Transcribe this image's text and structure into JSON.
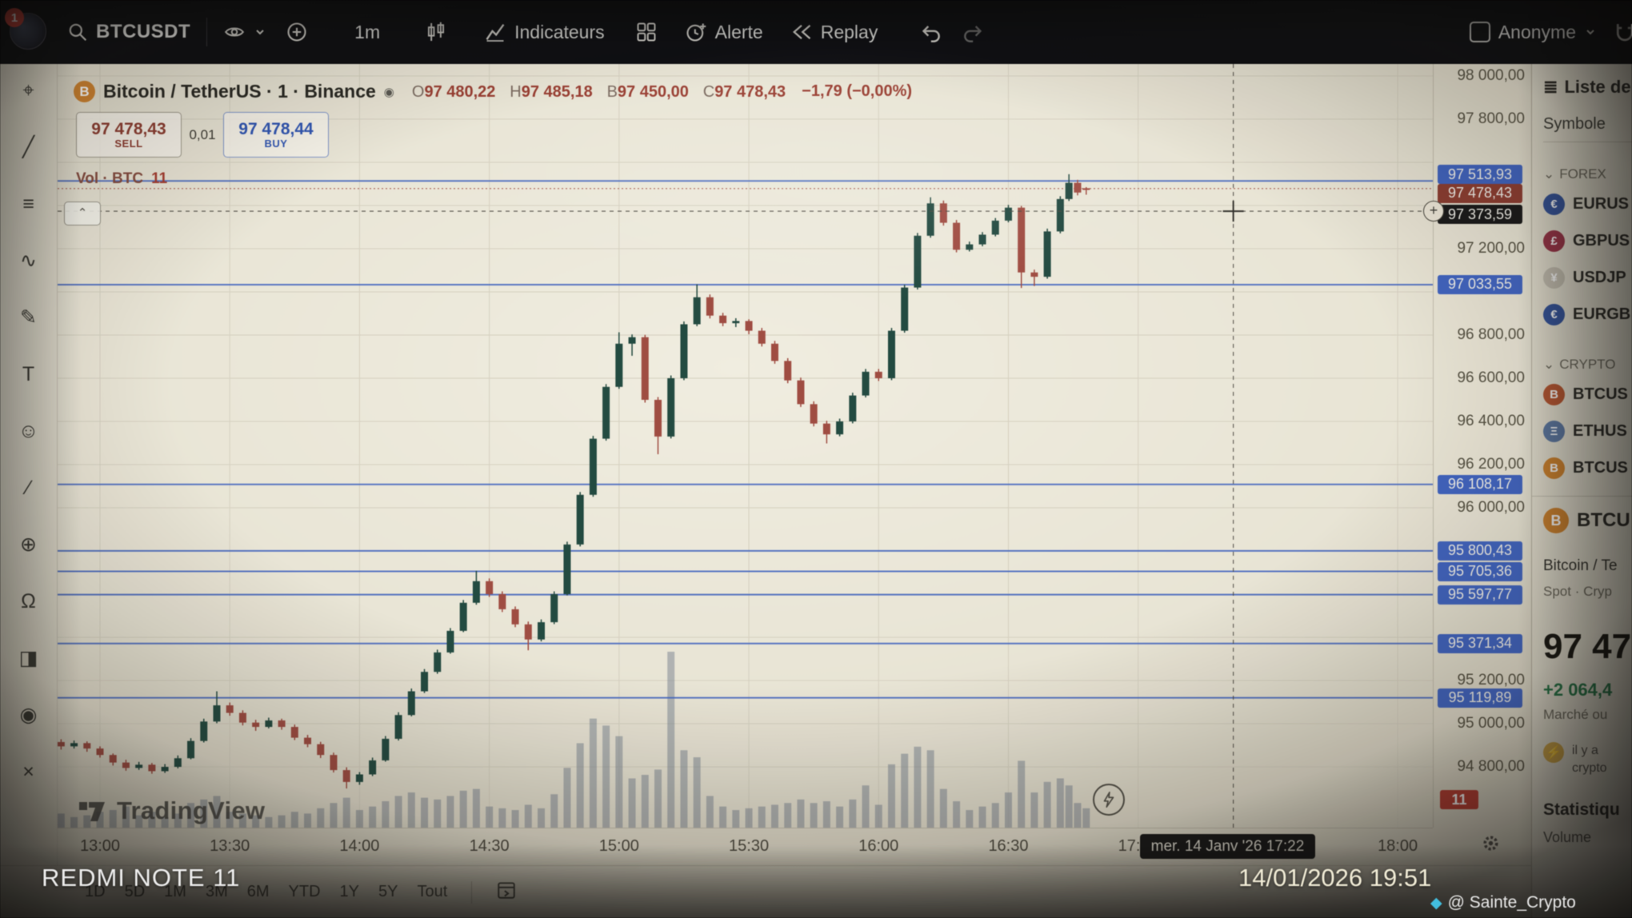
{
  "toolbar": {
    "notification_count": "1",
    "symbol": "BTCUSDT",
    "interval": "1m",
    "indicators_label": "Indicateurs",
    "alert_label": "Alerte",
    "replay_label": "Replay",
    "anonymous_label": "Anonyme"
  },
  "legend": {
    "title": "Bitcoin / TetherUS · 1 · Binance",
    "o_label": "O",
    "o": "97 480,22",
    "h_label": "H",
    "h": "97 485,18",
    "l_label": "B",
    "l": "97 450,00",
    "c_label": "C",
    "c": "97 478,43",
    "change": "−1,79 (−0,00%)"
  },
  "trade_panel": {
    "sell_price": "97 478,43",
    "sell_label": "SELL",
    "spread": "0,01",
    "buy_price": "97 478,44",
    "buy_label": "BUY"
  },
  "volume": {
    "label": "Vol · BTC",
    "value": "11"
  },
  "tool_rail": [
    {
      "name": "crosshair-tool",
      "glyph": "⌖"
    },
    {
      "name": "trend-line-tool",
      "glyph": "╱"
    },
    {
      "name": "fib-retracement-tool",
      "glyph": "≡"
    },
    {
      "name": "pattern-tool",
      "glyph": "∿"
    },
    {
      "name": "brush-tool",
      "glyph": "✎"
    },
    {
      "name": "text-tool",
      "glyph": "T"
    },
    {
      "name": "emoji-tool",
      "glyph": "☺"
    },
    {
      "name": "measure-tool",
      "glyph": "∕"
    },
    {
      "name": "zoom-in-tool",
      "glyph": "⊕"
    },
    {
      "name": "magnet-tool",
      "glyph": "Ω"
    },
    {
      "name": "lock-drawings-tool",
      "glyph": "◨"
    },
    {
      "name": "hide-drawings-tool",
      "glyph": "◉"
    },
    {
      "name": "remove-drawings-tool",
      "glyph": "×"
    }
  ],
  "chart_data": {
    "type": "candlestick",
    "symbol": "BTCUSDT",
    "exchange": "Binance",
    "interval": "1m",
    "t_unit": "minutes_after_13:00",
    "price_range": {
      "min": 94800,
      "max": 98000,
      "grid_step": 200
    },
    "time_ticks": [
      {
        "t": 0,
        "label": "13:00"
      },
      {
        "t": 30,
        "label": "13:30"
      },
      {
        "t": 60,
        "label": "14:00"
      },
      {
        "t": 90,
        "label": "14:30"
      },
      {
        "t": 120,
        "label": "15:00"
      },
      {
        "t": 150,
        "label": "15:30"
      },
      {
        "t": 180,
        "label": "16:00"
      },
      {
        "t": 210,
        "label": "16:30"
      },
      {
        "t": 240,
        "label": "17:00"
      },
      {
        "t": 300,
        "label": "18:00"
      }
    ],
    "price_ticks": [
      {
        "p": 98000,
        "label": "98 000,00"
      },
      {
        "p": 97800,
        "label": "97 800,00"
      },
      {
        "p": 97200,
        "label": "97 200,00"
      },
      {
        "p": 96800,
        "label": "96 800,00"
      },
      {
        "p": 96600,
        "label": "96 600,00"
      },
      {
        "p": 96400,
        "label": "96 400,00"
      },
      {
        "p": 96200,
        "label": "96 200,00"
      },
      {
        "p": 96000,
        "label": "96 000,00"
      },
      {
        "p": 95200,
        "label": "95 200,00"
      },
      {
        "p": 95000,
        "label": "95 000,00"
      },
      {
        "p": 94800,
        "label": "94 800,00"
      }
    ],
    "levels": [
      {
        "p": 97513.93,
        "label": "97 513,93"
      },
      {
        "p": 97033.55,
        "label": "97 033,55"
      },
      {
        "p": 96108.17,
        "label": "96 108,17"
      },
      {
        "p": 95800.43,
        "label": "95 800,43"
      },
      {
        "p": 95705.36,
        "label": "95 705,36"
      },
      {
        "p": 95597.77,
        "label": "95 597,77"
      },
      {
        "p": 95371.34,
        "label": "95 371,34"
      },
      {
        "p": 95119.89,
        "label": "95 119,89"
      }
    ],
    "current_price": {
      "p": 97478.43,
      "label": "97 478,43"
    },
    "crosshair": {
      "p": 97373.59,
      "price_label": "97 373,59",
      "t": 262,
      "time_label": "mer. 14 Janv '26  17:22"
    },
    "volume_badge": "11",
    "candles": [
      [
        -9,
        94915,
        94928,
        94880,
        94895,
        8
      ],
      [
        -6,
        94895,
        94922,
        94885,
        94910,
        6
      ],
      [
        -3,
        94910,
        94918,
        94870,
        94885,
        7
      ],
      [
        0,
        94885,
        94895,
        94843,
        94855,
        9
      ],
      [
        3,
        94855,
        94862,
        94806,
        94820,
        10
      ],
      [
        6,
        94820,
        94833,
        94782,
        94795,
        12
      ],
      [
        9,
        94795,
        94823,
        94786,
        94810,
        7
      ],
      [
        12,
        94810,
        94818,
        94768,
        94780,
        9
      ],
      [
        15,
        94780,
        94813,
        94772,
        94800,
        6
      ],
      [
        18,
        94800,
        94853,
        94793,
        94840,
        8
      ],
      [
        21,
        94840,
        94933,
        94835,
        94920,
        14
      ],
      [
        24,
        94920,
        95023,
        94913,
        95010,
        16
      ],
      [
        27,
        95010,
        95150,
        95002,
        95085,
        18
      ],
      [
        30,
        95085,
        95098,
        95037,
        95050,
        9
      ],
      [
        33,
        95050,
        95062,
        94992,
        95005,
        8
      ],
      [
        36,
        95005,
        95018,
        94967,
        94985,
        7
      ],
      [
        39,
        94985,
        95028,
        94978,
        95015,
        6
      ],
      [
        42,
        95015,
        95023,
        94972,
        94985,
        7
      ],
      [
        45,
        94985,
        94996,
        94924,
        94935,
        9
      ],
      [
        48,
        94935,
        94948,
        94891,
        94905,
        8
      ],
      [
        51,
        94905,
        94916,
        94841,
        94855,
        11
      ],
      [
        54,
        94855,
        94866,
        94774,
        94785,
        14
      ],
      [
        57,
        94785,
        94798,
        94700,
        94730,
        17
      ],
      [
        60,
        94730,
        94776,
        94717,
        94765,
        10
      ],
      [
        63,
        94765,
        94843,
        94757,
        94830,
        12
      ],
      [
        66,
        94830,
        94943,
        94824,
        94930,
        15
      ],
      [
        69,
        94930,
        95053,
        94922,
        95040,
        18
      ],
      [
        72,
        95040,
        95163,
        95034,
        95150,
        20
      ],
      [
        75,
        95150,
        95253,
        95142,
        95240,
        17
      ],
      [
        78,
        95240,
        95343,
        95231,
        95330,
        16
      ],
      [
        81,
        95330,
        95443,
        95324,
        95430,
        18
      ],
      [
        84,
        95430,
        95573,
        95424,
        95560,
        21
      ],
      [
        87,
        95560,
        95708,
        95551,
        95660,
        22
      ],
      [
        90,
        95660,
        95673,
        95587,
        95600,
        12
      ],
      [
        93,
        95600,
        95613,
        95517,
        95530,
        11
      ],
      [
        96,
        95530,
        95543,
        95447,
        95460,
        10
      ],
      [
        99,
        95460,
        95473,
        95340,
        95390,
        13
      ],
      [
        102,
        95390,
        95483,
        95381,
        95470,
        11
      ],
      [
        105,
        95470,
        95613,
        95461,
        95600,
        19
      ],
      [
        108,
        95600,
        95843,
        95594,
        95830,
        34
      ],
      [
        111,
        95830,
        96073,
        95821,
        96060,
        48
      ],
      [
        114,
        96060,
        96333,
        96051,
        96320,
        62
      ],
      [
        117,
        96320,
        96573,
        96311,
        96560,
        58
      ],
      [
        120,
        96560,
        96813,
        96551,
        96760,
        52
      ],
      [
        123,
        96760,
        96803,
        96704,
        96790,
        28
      ],
      [
        126,
        96790,
        96801,
        96487,
        96500,
        30
      ],
      [
        129,
        96500,
        96513,
        96248,
        96330,
        33
      ],
      [
        132,
        96330,
        96613,
        96321,
        96600,
        100
      ],
      [
        135,
        96600,
        96863,
        96591,
        96850,
        44
      ],
      [
        138,
        96850,
        97035,
        96841,
        96975,
        40
      ],
      [
        141,
        96975,
        96988,
        96877,
        96890,
        18
      ],
      [
        144,
        96890,
        96903,
        96841,
        96855,
        12
      ],
      [
        147,
        96855,
        96878,
        96837,
        96865,
        10
      ],
      [
        150,
        96865,
        96873,
        96804,
        96820,
        11
      ],
      [
        153,
        96820,
        96833,
        96747,
        96760,
        12
      ],
      [
        156,
        96760,
        96773,
        96667,
        96680,
        13
      ],
      [
        159,
        96680,
        96693,
        96577,
        96590,
        14
      ],
      [
        162,
        96590,
        96603,
        96467,
        96480,
        16
      ],
      [
        165,
        96480,
        96493,
        96377,
        96390,
        14
      ],
      [
        168,
        96390,
        96403,
        96298,
        96340,
        15
      ],
      [
        171,
        96340,
        96413,
        96331,
        96400,
        12
      ],
      [
        174,
        96400,
        96533,
        96391,
        96520,
        16
      ],
      [
        177,
        96520,
        96643,
        96511,
        96630,
        24
      ],
      [
        180,
        96630,
        96643,
        96587,
        96600,
        13
      ],
      [
        183,
        96600,
        96833,
        96591,
        96820,
        36
      ],
      [
        186,
        96820,
        97033,
        96811,
        97020,
        42
      ],
      [
        189,
        97020,
        97273,
        97011,
        97260,
        46
      ],
      [
        192,
        97260,
        97438,
        97251,
        97410,
        44
      ],
      [
        195,
        97410,
        97423,
        97307,
        97320,
        22
      ],
      [
        198,
        97320,
        97333,
        97183,
        97195,
        15
      ],
      [
        201,
        97195,
        97233,
        97187,
        97220,
        10
      ],
      [
        204,
        97220,
        97277,
        97211,
        97265,
        12
      ],
      [
        207,
        97265,
        97342,
        97257,
        97330,
        14
      ],
      [
        210,
        97330,
        97403,
        97322,
        97390,
        20
      ],
      [
        213,
        97390,
        97398,
        97018,
        97090,
        38
      ],
      [
        216,
        97090,
        97103,
        97027,
        97070,
        20
      ],
      [
        219,
        97070,
        97293,
        97061,
        97280,
        26
      ],
      [
        222,
        97280,
        97443,
        97271,
        97430,
        28
      ],
      [
        224,
        97430,
        97545,
        97421,
        97505,
        24
      ],
      [
        226,
        97505,
        97519,
        97447,
        97460,
        14
      ],
      [
        228,
        97480.22,
        97485.18,
        97450,
        97478.43,
        11
      ]
    ],
    "colors": {
      "up": "#1d4a3f",
      "down": "#a8493d",
      "grid": "#d8d3c0",
      "level": "#3b63cb",
      "volume": "rgba(104,118,138,0.45)",
      "crosshair": "#4a463e",
      "current": "#a8493d",
      "level_label_bg": "#3b63cb",
      "current_label_bg": "#93392c",
      "crosshair_label_bg": "#171717"
    }
  },
  "watermark": {
    "logo_label": "TradingView"
  },
  "bottom_bar": {
    "ranges": [
      "1D",
      "5D",
      "1M",
      "3M",
      "6M",
      "YTD",
      "1Y",
      "5Y",
      "Tout"
    ]
  },
  "sidebar": {
    "title": "Liste de su",
    "tab": "Symbole",
    "sections": [
      {
        "label": "FOREX",
        "items": [
          {
            "symbol": "EURUS",
            "icon": "eur-flag-icon",
            "color": "#3053a4",
            "letter": "€"
          },
          {
            "symbol": "GBPUS",
            "icon": "gbp-flag-icon",
            "color": "#a43046",
            "letter": "£"
          },
          {
            "symbol": "USDJP",
            "icon": "jpy-flag-icon",
            "color": "#c8c2b2",
            "letter": "¥"
          },
          {
            "symbol": "EURGB",
            "icon": "eurgbp-flag-icon",
            "color": "#3053a4",
            "letter": "€"
          }
        ]
      },
      {
        "label": "CRYPTO",
        "items": [
          {
            "symbol": "BTCUS",
            "icon": "btc-icon",
            "color": "#c2552a",
            "letter": "B"
          },
          {
            "symbol": "ETHUS",
            "icon": "eth-icon",
            "color": "#5a79a8",
            "letter": "Ξ"
          },
          {
            "symbol": "BTCUS",
            "icon": "btc-icon",
            "color": "#d98222",
            "letter": "B"
          }
        ]
      }
    ],
    "detail": {
      "symbol": "BTCU",
      "icon": "btc-icon",
      "name": "Bitcoin / Te",
      "market": "Spot · Cryp",
      "price": "97 47",
      "change": "+2 064,4",
      "status": "Marché ou",
      "alert_line1": "il y a",
      "alert_line2": "crypto",
      "stats_header": "Statistiqu",
      "stats_item": "Volume"
    }
  },
  "photo": {
    "device_label": "REDMI NOTE 11",
    "timestamp": "14/01/2026 19:51",
    "credit": "@ Sainte_Crypto"
  }
}
